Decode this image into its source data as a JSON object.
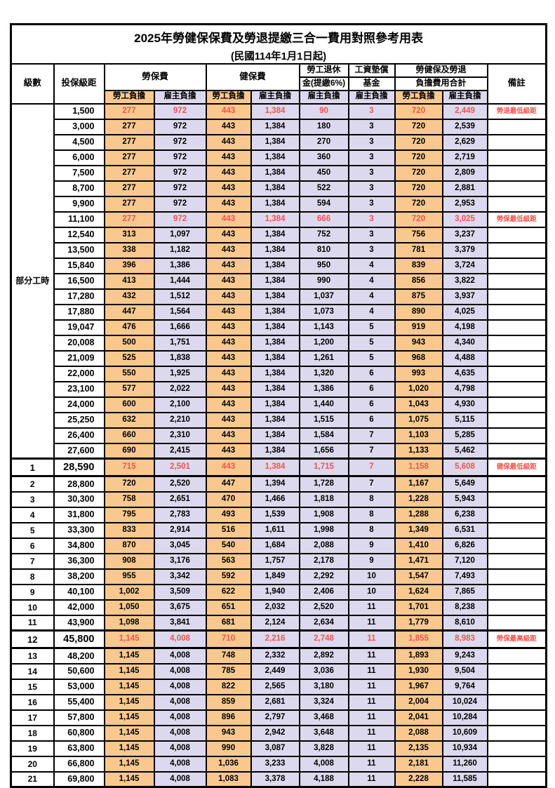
{
  "title": "2025年勞健保保費及勞退提繳三合一費用對照參考用表",
  "subtitle": "(民國114年1月1日起)",
  "colors": {
    "employee_column_bg": "#F8C88E",
    "employer_column_bg": "#DCD9EE",
    "highlight_red": "#F4544E",
    "border": "#000000"
  },
  "header": {
    "level": "級數",
    "bracket": "投保級距",
    "labor_insurance": "勞保費",
    "health_insurance": "健保費",
    "pension": [
      "勞工退休",
      "金(提繳6%)"
    ],
    "wage_fund": [
      "工資墊償",
      "基金"
    ],
    "total": [
      "勞健保及勞退",
      "負擔費用合計"
    ],
    "remark": "備註",
    "employee": "勞工負擔",
    "employer": "雇主負擔"
  },
  "part_time_label": "部分工時",
  "rows": [
    {
      "lv": "",
      "br": "1,500",
      "v": [
        "277",
        "972",
        "443",
        "1,384",
        "90",
        "3",
        "720",
        "2,449"
      ],
      "red": true,
      "rm": "勞退最低級距",
      "em": false,
      "pt": true
    },
    {
      "lv": "",
      "br": "3,000",
      "v": [
        "277",
        "972",
        "443",
        "1,384",
        "180",
        "3",
        "720",
        "2,539"
      ],
      "red": false,
      "rm": "",
      "em": false
    },
    {
      "lv": "",
      "br": "4,500",
      "v": [
        "277",
        "972",
        "443",
        "1,384",
        "270",
        "3",
        "720",
        "2,629"
      ],
      "red": false,
      "rm": "",
      "em": false
    },
    {
      "lv": "",
      "br": "6,000",
      "v": [
        "277",
        "972",
        "443",
        "1,384",
        "360",
        "3",
        "720",
        "2,719"
      ],
      "red": false,
      "rm": "",
      "em": false
    },
    {
      "lv": "",
      "br": "7,500",
      "v": [
        "277",
        "972",
        "443",
        "1,384",
        "450",
        "3",
        "720",
        "2,809"
      ],
      "red": false,
      "rm": "",
      "em": false
    },
    {
      "lv": "",
      "br": "8,700",
      "v": [
        "277",
        "972",
        "443",
        "1,384",
        "522",
        "3",
        "720",
        "2,881"
      ],
      "red": false,
      "rm": "",
      "em": false
    },
    {
      "lv": "",
      "br": "9,900",
      "v": [
        "277",
        "972",
        "443",
        "1,384",
        "594",
        "3",
        "720",
        "2,953"
      ],
      "red": false,
      "rm": "",
      "em": false
    },
    {
      "lv": "",
      "br": "11,100",
      "v": [
        "277",
        "972",
        "443",
        "1,384",
        "666",
        "3",
        "720",
        "3,025"
      ],
      "red": true,
      "rm": "勞保最低級距",
      "em": false
    },
    {
      "lv": "",
      "br": "12,540",
      "v": [
        "313",
        "1,097",
        "443",
        "1,384",
        "752",
        "3",
        "756",
        "3,237"
      ],
      "red": false,
      "rm": "",
      "em": false
    },
    {
      "lv": "",
      "br": "13,500",
      "v": [
        "338",
        "1,182",
        "443",
        "1,384",
        "810",
        "3",
        "781",
        "3,379"
      ],
      "red": false,
      "rm": "",
      "em": false
    },
    {
      "lv": "",
      "br": "15,840",
      "v": [
        "396",
        "1,386",
        "443",
        "1,384",
        "950",
        "4",
        "839",
        "3,724"
      ],
      "red": false,
      "rm": "",
      "em": false
    },
    {
      "lv": "",
      "br": "16,500",
      "v": [
        "413",
        "1,444",
        "443",
        "1,384",
        "990",
        "4",
        "856",
        "3,822"
      ],
      "red": false,
      "rm": "",
      "em": false
    },
    {
      "lv": "",
      "br": "17,280",
      "v": [
        "432",
        "1,512",
        "443",
        "1,384",
        "1,037",
        "4",
        "875",
        "3,937"
      ],
      "red": false,
      "rm": "",
      "em": false
    },
    {
      "lv": "",
      "br": "17,880",
      "v": [
        "447",
        "1,564",
        "443",
        "1,384",
        "1,073",
        "4",
        "890",
        "4,025"
      ],
      "red": false,
      "rm": "",
      "em": false
    },
    {
      "lv": "",
      "br": "19,047",
      "v": [
        "476",
        "1,666",
        "443",
        "1,384",
        "1,143",
        "5",
        "919",
        "4,198"
      ],
      "red": false,
      "rm": "",
      "em": false
    },
    {
      "lv": "",
      "br": "20,008",
      "v": [
        "500",
        "1,751",
        "443",
        "1,384",
        "1,200",
        "5",
        "943",
        "4,340"
      ],
      "red": false,
      "rm": "",
      "em": false
    },
    {
      "lv": "",
      "br": "21,009",
      "v": [
        "525",
        "1,838",
        "443",
        "1,384",
        "1,261",
        "5",
        "968",
        "4,488"
      ],
      "red": false,
      "rm": "",
      "em": false
    },
    {
      "lv": "",
      "br": "22,000",
      "v": [
        "550",
        "1,925",
        "443",
        "1,384",
        "1,320",
        "6",
        "993",
        "4,635"
      ],
      "red": false,
      "rm": "",
      "em": false
    },
    {
      "lv": "",
      "br": "23,100",
      "v": [
        "577",
        "2,022",
        "443",
        "1,384",
        "1,386",
        "6",
        "1,020",
        "4,798"
      ],
      "red": false,
      "rm": "",
      "em": false
    },
    {
      "lv": "",
      "br": "24,000",
      "v": [
        "600",
        "2,100",
        "443",
        "1,384",
        "1,440",
        "6",
        "1,043",
        "4,930"
      ],
      "red": false,
      "rm": "",
      "em": false
    },
    {
      "lv": "",
      "br": "25,250",
      "v": [
        "632",
        "2,210",
        "443",
        "1,384",
        "1,515",
        "6",
        "1,075",
        "5,115"
      ],
      "red": false,
      "rm": "",
      "em": false
    },
    {
      "lv": "",
      "br": "26,400",
      "v": [
        "660",
        "2,310",
        "443",
        "1,384",
        "1,584",
        "7",
        "1,103",
        "5,285"
      ],
      "red": false,
      "rm": "",
      "em": false
    },
    {
      "lv": "",
      "br": "27,600",
      "v": [
        "690",
        "2,415",
        "443",
        "1,384",
        "1,656",
        "7",
        "1,133",
        "5,462"
      ],
      "red": false,
      "rm": "",
      "em": false
    },
    {
      "lv": "1",
      "br": "28,590",
      "v": [
        "715",
        "2,501",
        "443",
        "1,384",
        "1,715",
        "7",
        "1,158",
        "5,608"
      ],
      "red": true,
      "rm": "健保最低級距",
      "em": true
    },
    {
      "lv": "2",
      "br": "28,800",
      "v": [
        "720",
        "2,520",
        "447",
        "1,394",
        "1,728",
        "7",
        "1,167",
        "5,649"
      ],
      "red": false,
      "rm": "",
      "em": false
    },
    {
      "lv": "3",
      "br": "30,300",
      "v": [
        "758",
        "2,651",
        "470",
        "1,466",
        "1,818",
        "8",
        "1,228",
        "5,943"
      ],
      "red": false,
      "rm": "",
      "em": false
    },
    {
      "lv": "4",
      "br": "31,800",
      "v": [
        "795",
        "2,783",
        "493",
        "1,539",
        "1,908",
        "8",
        "1,288",
        "6,238"
      ],
      "red": false,
      "rm": "",
      "em": false
    },
    {
      "lv": "5",
      "br": "33,300",
      "v": [
        "833",
        "2,914",
        "516",
        "1,611",
        "1,998",
        "8",
        "1,349",
        "6,531"
      ],
      "red": false,
      "rm": "",
      "em": false
    },
    {
      "lv": "6",
      "br": "34,800",
      "v": [
        "870",
        "3,045",
        "540",
        "1,684",
        "2,088",
        "9",
        "1,410",
        "6,826"
      ],
      "red": false,
      "rm": "",
      "em": false
    },
    {
      "lv": "7",
      "br": "36,300",
      "v": [
        "908",
        "3,176",
        "563",
        "1,757",
        "2,178",
        "9",
        "1,471",
        "7,120"
      ],
      "red": false,
      "rm": "",
      "em": false
    },
    {
      "lv": "8",
      "br": "38,200",
      "v": [
        "955",
        "3,342",
        "592",
        "1,849",
        "2,292",
        "10",
        "1,547",
        "7,493"
      ],
      "red": false,
      "rm": "",
      "em": false
    },
    {
      "lv": "9",
      "br": "40,100",
      "v": [
        "1,002",
        "3,509",
        "622",
        "1,940",
        "2,406",
        "10",
        "1,624",
        "7,865"
      ],
      "red": false,
      "rm": "",
      "em": false
    },
    {
      "lv": "10",
      "br": "42,000",
      "v": [
        "1,050",
        "3,675",
        "651",
        "2,032",
        "2,520",
        "11",
        "1,701",
        "8,238"
      ],
      "red": false,
      "rm": "",
      "em": false
    },
    {
      "lv": "11",
      "br": "43,900",
      "v": [
        "1,098",
        "3,841",
        "681",
        "2,124",
        "2,634",
        "11",
        "1,779",
        "8,610"
      ],
      "red": false,
      "rm": "",
      "em": false
    },
    {
      "lv": "12",
      "br": "45,800",
      "v": [
        "1,145",
        "4,008",
        "710",
        "2,216",
        "2,748",
        "11",
        "1,855",
        "8,983"
      ],
      "red": true,
      "rm": "勞保最高級距",
      "em": true
    },
    {
      "lv": "13",
      "br": "48,200",
      "v": [
        "1,145",
        "4,008",
        "748",
        "2,332",
        "2,892",
        "11",
        "1,893",
        "9,243"
      ],
      "red": false,
      "rm": "",
      "em": false
    },
    {
      "lv": "14",
      "br": "50,600",
      "v": [
        "1,145",
        "4,008",
        "785",
        "2,449",
        "3,036",
        "11",
        "1,930",
        "9,504"
      ],
      "red": false,
      "rm": "",
      "em": false
    },
    {
      "lv": "15",
      "br": "53,000",
      "v": [
        "1,145",
        "4,008",
        "822",
        "2,565",
        "3,180",
        "11",
        "1,967",
        "9,764"
      ],
      "red": false,
      "rm": "",
      "em": false
    },
    {
      "lv": "16",
      "br": "55,400",
      "v": [
        "1,145",
        "4,008",
        "859",
        "2,681",
        "3,324",
        "11",
        "2,004",
        "10,024"
      ],
      "red": false,
      "rm": "",
      "em": false
    },
    {
      "lv": "17",
      "br": "57,800",
      "v": [
        "1,145",
        "4,008",
        "896",
        "2,797",
        "3,468",
        "11",
        "2,041",
        "10,284"
      ],
      "red": false,
      "rm": "",
      "em": false
    },
    {
      "lv": "18",
      "br": "60,800",
      "v": [
        "1,145",
        "4,008",
        "943",
        "2,942",
        "3,648",
        "11",
        "2,088",
        "10,609"
      ],
      "red": false,
      "rm": "",
      "em": false
    },
    {
      "lv": "19",
      "br": "63,800",
      "v": [
        "1,145",
        "4,008",
        "990",
        "3,087",
        "3,828",
        "11",
        "2,135",
        "10,934"
      ],
      "red": false,
      "rm": "",
      "em": false
    },
    {
      "lv": "20",
      "br": "66,800",
      "v": [
        "1,145",
        "4,008",
        "1,036",
        "3,233",
        "4,008",
        "11",
        "2,181",
        "11,260"
      ],
      "red": false,
      "rm": "",
      "em": false
    },
    {
      "lv": "21",
      "br": "69,800",
      "v": [
        "1,145",
        "4,008",
        "1,083",
        "3,378",
        "4,188",
        "11",
        "2,228",
        "11,585"
      ],
      "red": false,
      "rm": "",
      "em": false
    }
  ]
}
